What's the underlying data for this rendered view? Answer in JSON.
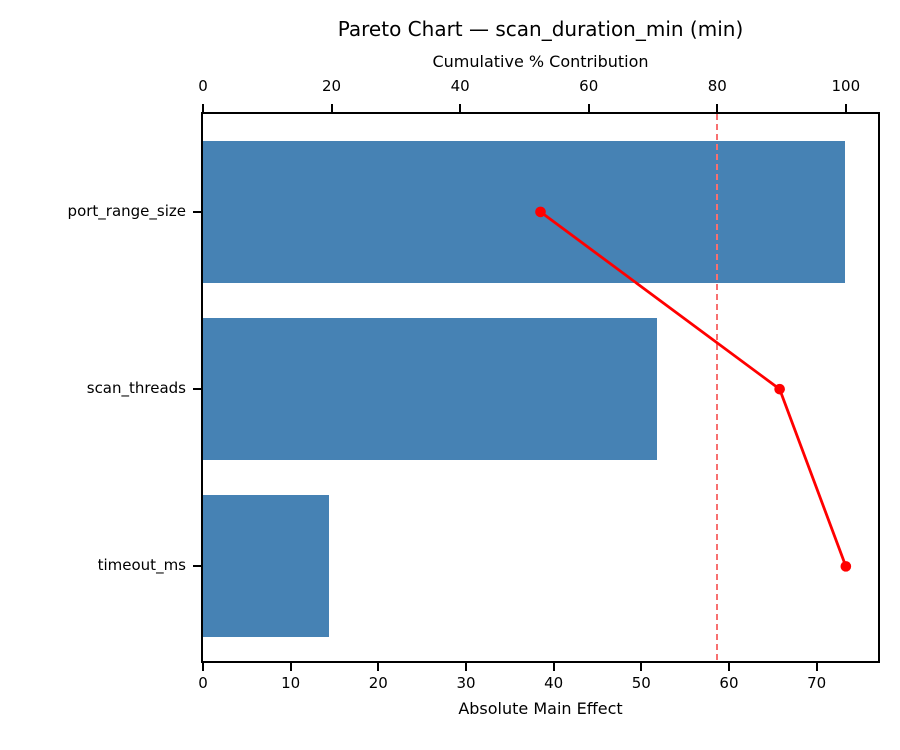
{
  "chart_data": {
    "type": "bar",
    "subtype": "pareto",
    "orientation": "horizontal",
    "title": "Pareto Chart — scan_duration_min (min)",
    "categories": [
      "port_range_size",
      "scan_threads",
      "timeout_ms"
    ],
    "series": [
      {
        "name": "Absolute Main Effect",
        "type": "bar",
        "values": [
          73.2,
          51.8,
          14.4
        ]
      },
      {
        "name": "Cumulative % Contribution",
        "type": "line",
        "values": [
          52.5,
          89.7,
          100.0
        ]
      }
    ],
    "threshold_line": {
      "value": 80,
      "axis": "top",
      "style": "dashed"
    },
    "bottom_axis": {
      "label": "Absolute Main Effect",
      "ticks": [
        0,
        10,
        20,
        30,
        40,
        50,
        60,
        70
      ],
      "lim": [
        0,
        77
      ]
    },
    "top_axis": {
      "label": "Cumulative % Contribution",
      "ticks": [
        0,
        20,
        40,
        60,
        80,
        100
      ],
      "lim": [
        0,
        105
      ]
    },
    "grid": false,
    "legend": false,
    "colors": {
      "bar": "#4682B4",
      "line": "#FF0000",
      "threshold": "#F87070",
      "text": "#000000",
      "background": "#FFFFFF"
    }
  }
}
